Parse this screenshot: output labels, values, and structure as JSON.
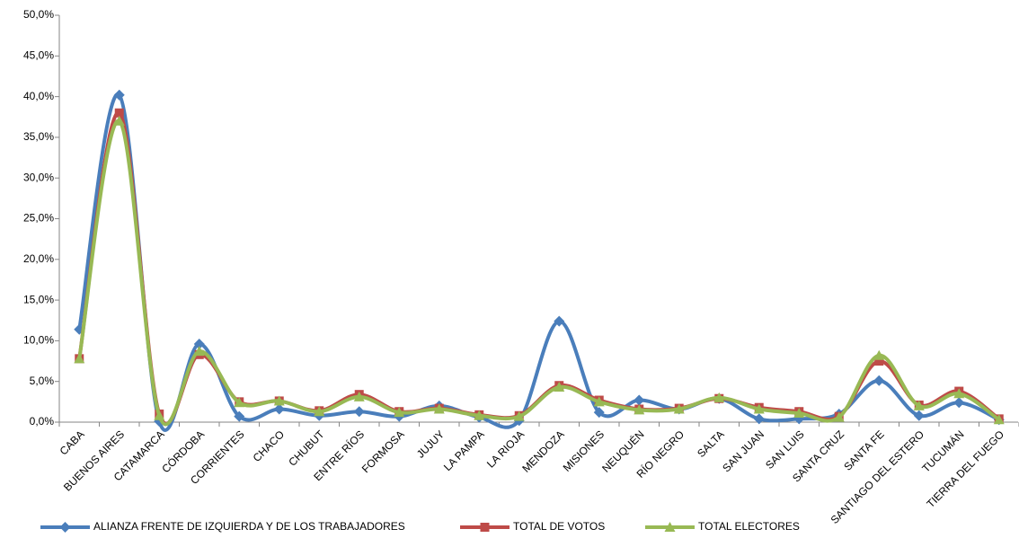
{
  "chart_data": {
    "type": "line",
    "smooth": true,
    "legend": "bottom",
    "grid": false,
    "categories": [
      "CABA",
      "BUENOS AIRES",
      "CATAMARCA",
      "CÓRDOBA",
      "CORRIENTES",
      "CHACO",
      "CHUBUT",
      "ENTRE RÍOS",
      "FORMOSA",
      "JUJUY",
      "LA PAMPA",
      "LA RIOJA",
      "MENDOZA",
      "MISIONES",
      "NEUQUÉN",
      "RÍO NEGRO",
      "SALTA",
      "SAN JUAN",
      "SAN LUIS",
      "SANTA CRUZ",
      "SANTA FE",
      "SANTIAGO DEL ESTERO",
      "TUCUMÁN",
      "TIERRA DEL FUEGO"
    ],
    "series": [
      {
        "name": "ALIANZA FRENTE DE IZQUIERDA Y DE LOS TRABAJADORES",
        "color": "#4a7ebb",
        "marker": "diamond",
        "values": [
          11.4,
          40.2,
          0.1,
          9.6,
          0.7,
          1.6,
          0.8,
          1.3,
          0.7,
          2.0,
          0.6,
          0.2,
          12.4,
          1.2,
          2.7,
          1.6,
          2.9,
          0.4,
          0.4,
          1.0,
          5.1,
          0.8,
          2.4,
          0.3
        ]
      },
      {
        "name": "TOTAL DE VOTOS",
        "color": "#be4b48",
        "marker": "square",
        "values": [
          7.8,
          38.0,
          1.0,
          8.3,
          2.5,
          2.6,
          1.4,
          3.4,
          1.3,
          1.7,
          0.9,
          0.8,
          4.5,
          2.7,
          1.6,
          1.7,
          2.9,
          1.8,
          1.3,
          0.7,
          7.5,
          2.1,
          3.8,
          0.4
        ]
      },
      {
        "name": "TOTAL ELECTORES",
        "color": "#98b954",
        "marker": "triangle",
        "values": [
          7.8,
          37.0,
          0.8,
          8.7,
          2.4,
          2.6,
          1.3,
          3.1,
          1.2,
          1.6,
          0.8,
          0.7,
          4.3,
          2.5,
          1.5,
          1.6,
          3.0,
          1.6,
          1.1,
          0.6,
          8.2,
          2.0,
          3.5,
          0.3
        ]
      }
    ],
    "ylim": [
      0,
      50
    ],
    "yticks": [
      {
        "value": 0,
        "label": "0,0%"
      },
      {
        "value": 5,
        "label": "5,0%"
      },
      {
        "value": 10,
        "label": "10,0%"
      },
      {
        "value": 15,
        "label": "15,0%"
      },
      {
        "value": 20,
        "label": "20,0%"
      },
      {
        "value": 25,
        "label": "25,0%"
      },
      {
        "value": 30,
        "label": "30,0%"
      },
      {
        "value": 35,
        "label": "35,0%"
      },
      {
        "value": 40,
        "label": "40,0%"
      },
      {
        "value": 45,
        "label": "45,0%"
      },
      {
        "value": 50,
        "label": "50,0%"
      }
    ]
  }
}
